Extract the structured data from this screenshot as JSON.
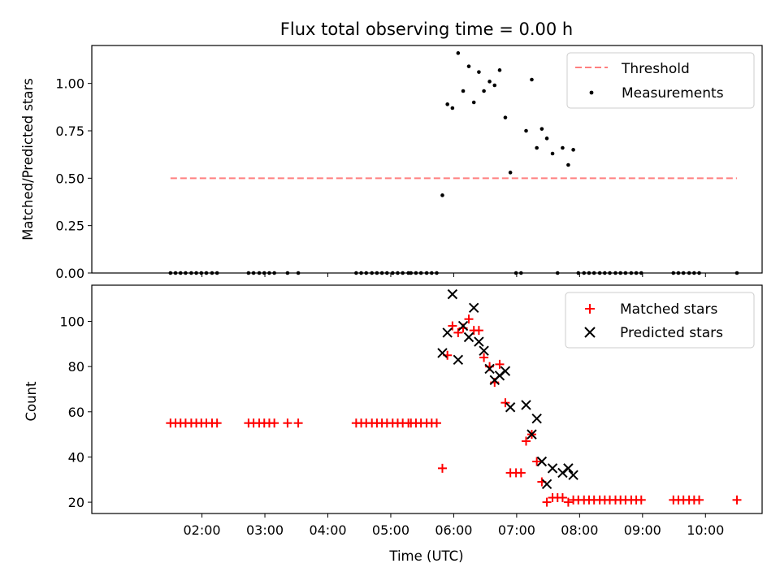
{
  "chart_data": {
    "type": "scatter",
    "title": "Flux total observing time = 0.00 h",
    "xlabel": "Time (UTC)",
    "x_unit": "hours UTC",
    "xlim": [
      0.25,
      10.9
    ],
    "x_ticks": [
      {
        "value": 2,
        "label": "02:00"
      },
      {
        "value": 3,
        "label": "03:00"
      },
      {
        "value": 4,
        "label": "04:00"
      },
      {
        "value": 5,
        "label": "05:00"
      },
      {
        "value": 6,
        "label": "06:00"
      },
      {
        "value": 7,
        "label": "07:00"
      },
      {
        "value": 8,
        "label": "08:00"
      },
      {
        "value": 9,
        "label": "09:00"
      },
      {
        "value": 10,
        "label": "10:00"
      }
    ],
    "top": {
      "ylabel": "Matched/Predicted stars",
      "ylim": [
        0,
        1.2
      ],
      "y_ticks": [
        {
          "value": 0,
          "label": "0.00"
        },
        {
          "value": 0.25,
          "label": "0.25"
        },
        {
          "value": 0.5,
          "label": "0.50"
        },
        {
          "value": 0.75,
          "label": "0.75"
        },
        {
          "value": 1.0,
          "label": "1.00"
        }
      ],
      "legend": [
        "Threshold",
        "Measurements"
      ],
      "legend_position": "top-right",
      "threshold": {
        "name": "Threshold",
        "value": 0.5,
        "x_range": [
          1.5,
          10.5
        ],
        "color": "#ff7f7f",
        "style": "dashed"
      },
      "measurements": {
        "name": "Measurements",
        "color": "#000000",
        "x": [
          1.5,
          1.58,
          1.66,
          1.74,
          1.83,
          1.91,
          1.99,
          2.07,
          2.16,
          2.24,
          2.74,
          2.82,
          2.91,
          2.99,
          3.07,
          3.15,
          3.36,
          3.53,
          4.45,
          4.53,
          4.61,
          4.7,
          4.78,
          4.86,
          4.94,
          5.03,
          5.11,
          5.19,
          5.28,
          5.32,
          5.4,
          5.48,
          5.57,
          5.65,
          5.73,
          5.82,
          5.9,
          5.98,
          6.07,
          6.15,
          6.24,
          6.32,
          6.4,
          6.48,
          6.57,
          6.65,
          6.73,
          6.82,
          6.9,
          6.99,
          7.07,
          7.15,
          7.24,
          7.32,
          7.4,
          7.48,
          7.57,
          7.65,
          7.73,
          7.82,
          7.9,
          7.98,
          8.07,
          8.15,
          8.23,
          8.32,
          8.4,
          8.48,
          8.57,
          8.65,
          8.73,
          8.82,
          8.9,
          8.98,
          9.49,
          9.57,
          9.65,
          9.74,
          9.82,
          9.9,
          10.5
        ],
        "y": [
          0,
          0,
          0,
          0,
          0,
          0,
          0,
          0,
          0,
          0,
          0,
          0,
          0,
          0,
          0,
          0,
          0,
          0,
          0,
          0,
          0,
          0,
          0,
          0,
          0,
          0,
          0,
          0,
          0,
          0,
          0,
          0,
          0,
          0,
          0,
          0.41,
          0.89,
          0.87,
          1.16,
          0.96,
          1.09,
          0.9,
          1.06,
          0.96,
          1.01,
          0.99,
          1.07,
          0.82,
          0.53,
          0,
          0,
          0.75,
          1.02,
          0.66,
          0.76,
          0.71,
          0.63,
          0,
          0.66,
          0.57,
          0.65,
          0,
          0,
          0,
          0,
          0,
          0,
          0,
          0,
          0,
          0,
          0,
          0,
          0,
          0,
          0,
          0,
          0,
          0,
          0,
          0
        ]
      }
    },
    "bottom": {
      "ylabel": "Count",
      "ylim": [
        15,
        116
      ],
      "y_ticks": [
        {
          "value": 20,
          "label": "20"
        },
        {
          "value": 40,
          "label": "40"
        },
        {
          "value": 60,
          "label": "60"
        },
        {
          "value": 80,
          "label": "80"
        },
        {
          "value": 100,
          "label": "100"
        }
      ],
      "legend": [
        "Matched stars",
        "Predicted stars"
      ],
      "legend_position": "top-right",
      "series": [
        {
          "name": "Matched stars",
          "marker": "plus",
          "color": "#ff0000",
          "x": [
            1.5,
            1.58,
            1.66,
            1.74,
            1.83,
            1.91,
            1.99,
            2.07,
            2.16,
            2.24,
            2.74,
            2.82,
            2.91,
            2.99,
            3.07,
            3.15,
            3.36,
            3.53,
            4.45,
            4.53,
            4.61,
            4.7,
            4.78,
            4.86,
            4.94,
            5.03,
            5.11,
            5.19,
            5.28,
            5.32,
            5.4,
            5.48,
            5.57,
            5.65,
            5.73,
            5.82,
            5.9,
            5.98,
            6.07,
            6.15,
            6.24,
            6.32,
            6.4,
            6.48,
            6.57,
            6.65,
            6.73,
            6.82,
            6.9,
            6.99,
            7.07,
            7.15,
            7.24,
            7.32,
            7.4,
            7.48,
            7.57,
            7.65,
            7.73,
            7.82,
            7.9,
            7.98,
            8.07,
            8.15,
            8.23,
            8.32,
            8.4,
            8.48,
            8.57,
            8.65,
            8.73,
            8.82,
            8.9,
            8.98,
            9.49,
            9.57,
            9.65,
            9.74,
            9.82,
            9.9,
            10.5
          ],
          "y": [
            55,
            55,
            55,
            55,
            55,
            55,
            55,
            55,
            55,
            55,
            55,
            55,
            55,
            55,
            55,
            55,
            55,
            55,
            55,
            55,
            55,
            55,
            55,
            55,
            55,
            55,
            55,
            55,
            55,
            55,
            55,
            55,
            55,
            55,
            55,
            35,
            85,
            98,
            95,
            97,
            101,
            96,
            96,
            84,
            80,
            73,
            81,
            64,
            33,
            33,
            33,
            47,
            50,
            38,
            29,
            20,
            22,
            22,
            22,
            20,
            21,
            21,
            21,
            21,
            21,
            21,
            21,
            21,
            21,
            21,
            21,
            21,
            21,
            21,
            21,
            21,
            21,
            21,
            21,
            21,
            21
          ]
        },
        {
          "name": "Predicted stars",
          "marker": "x",
          "color": "#000000",
          "x": [
            5.82,
            5.9,
            5.98,
            6.07,
            6.15,
            6.24,
            6.32,
            6.4,
            6.48,
            6.57,
            6.65,
            6.73,
            6.82,
            6.9,
            7.15,
            7.24,
            7.32,
            7.4,
            7.48,
            7.57,
            7.73,
            7.82,
            7.9
          ],
          "y": [
            86,
            95,
            112,
            83,
            98,
            93,
            106,
            91,
            87,
            79,
            74,
            76,
            78,
            62,
            63,
            50,
            57,
            38,
            28,
            35,
            33,
            35,
            32
          ]
        }
      ]
    }
  }
}
